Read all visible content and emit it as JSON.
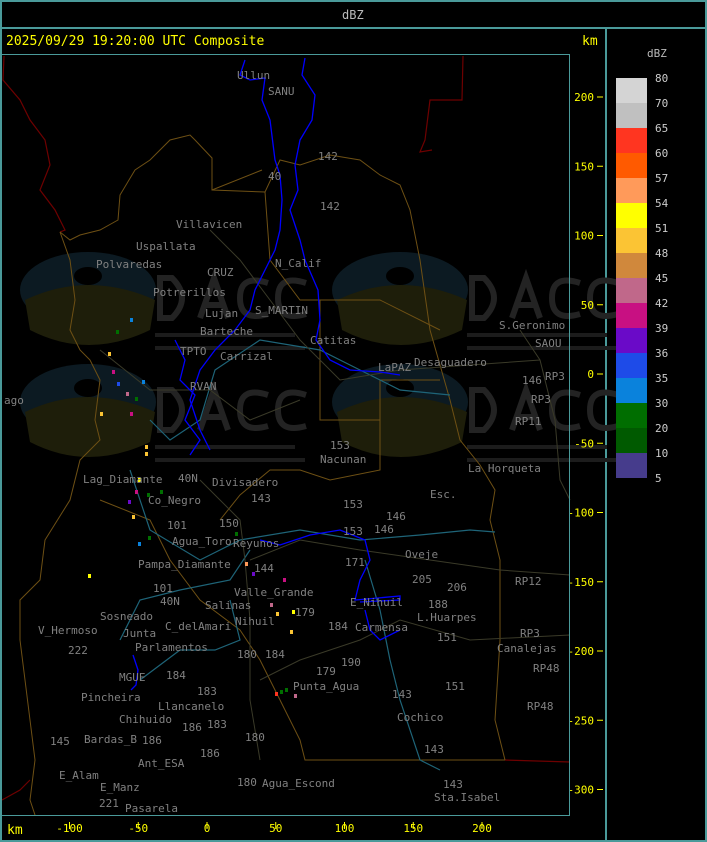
{
  "header": {
    "title": "dBZ"
  },
  "plot": {
    "timestamp": "2025/09/29 19:20:00 UTC Composite",
    "unit_right": "km",
    "unit_bottom": "km",
    "x_ticks": [
      "-100",
      "-50",
      "0",
      "50",
      "100",
      "150",
      "200"
    ],
    "y_ticks": [
      "200",
      "150",
      "100",
      "50",
      "0",
      "-50",
      "-100",
      "-150",
      "-200",
      "-250",
      "-300"
    ]
  },
  "legend": {
    "title": "dBZ",
    "labels": [
      "80",
      "70",
      "65",
      "60",
      "57",
      "54",
      "51",
      "48",
      "45",
      "42",
      "39",
      "36",
      "35",
      "30",
      "20",
      "10",
      "5"
    ],
    "colors": [
      "#d4d4d4",
      "#c0c0c0",
      "#ff3520",
      "#ff5a00",
      "#ff9a5a",
      "#ffff00",
      "#fbc434",
      "#d0883c",
      "#c0688a",
      "#c81082",
      "#6a0ac8",
      "#1e4be8",
      "#0a82dc",
      "#006e00",
      "#005a00",
      "#463c8c"
    ]
  },
  "places": [
    "Ullun",
    "SANU",
    "40",
    "Villavicen",
    "Uspallata",
    "Polvaredas",
    "142",
    "142",
    "N_Calif",
    "Potrerillos",
    "CRUZ",
    "Lujan",
    "S_MARTIN",
    "Barteche",
    "Carrizal",
    "Catitas",
    "TPTO",
    "RVAN",
    "LaPAZ",
    "Desaguadero",
    "S.Geronimo",
    "SAOU",
    "RP3",
    "146",
    "RP3",
    "RP11",
    "ago",
    "153",
    "Nacunan",
    "La Horqueta",
    "Lag_Diamante",
    "Co_Negro",
    "Divisadero",
    "40N",
    "143",
    "Esc.",
    "153",
    "146",
    "101",
    "150",
    "Agua_Toro",
    "Reyunos",
    "153",
    "146",
    "171",
    "Pampa_Diamante",
    "Oveje",
    "205",
    "206",
    "RP12",
    "101",
    "144",
    "Valle_Grande",
    "40N",
    "Salinas",
    "C_delAmari",
    "Parlamentos",
    "Sosneado",
    "179",
    "Nihuil",
    "E_Nihuil",
    "L.Huarpes",
    "188",
    "RP3",
    "V_Hermoso",
    "222",
    "Carmensa",
    "151",
    "Canalejas",
    "Junta",
    "184",
    "180",
    "184",
    "MGUE",
    "184",
    "Pincheira",
    "183",
    "Llancanelo",
    "179",
    "Punta_Agua",
    "190",
    "151",
    "RP48",
    "Chihuido",
    "186",
    "186",
    "143",
    "Ant_ESA",
    "183",
    "Cochico",
    "RP48",
    "145",
    "Bardas_B",
    "180",
    "143",
    "186",
    "E_Manz",
    "Agua_Escond",
    "180",
    "221",
    "143",
    "E_Alam",
    "Pasarela",
    "Sta.Isabel"
  ],
  "watermark": {
    "logo": "DACC",
    "line1": "Dirección de Agricultura",
    "line2": "y Contingencias Climáticas",
    "url": "http://www.contingencias.mendoza.gov.ar"
  },
  "colors": {
    "frame": "#4a9a9a",
    "radar_outline": "#0000ff",
    "boundary": "#6e5014",
    "river": "#1e6478",
    "road": "#3c3c2a",
    "border_intl": "#6e0000"
  }
}
